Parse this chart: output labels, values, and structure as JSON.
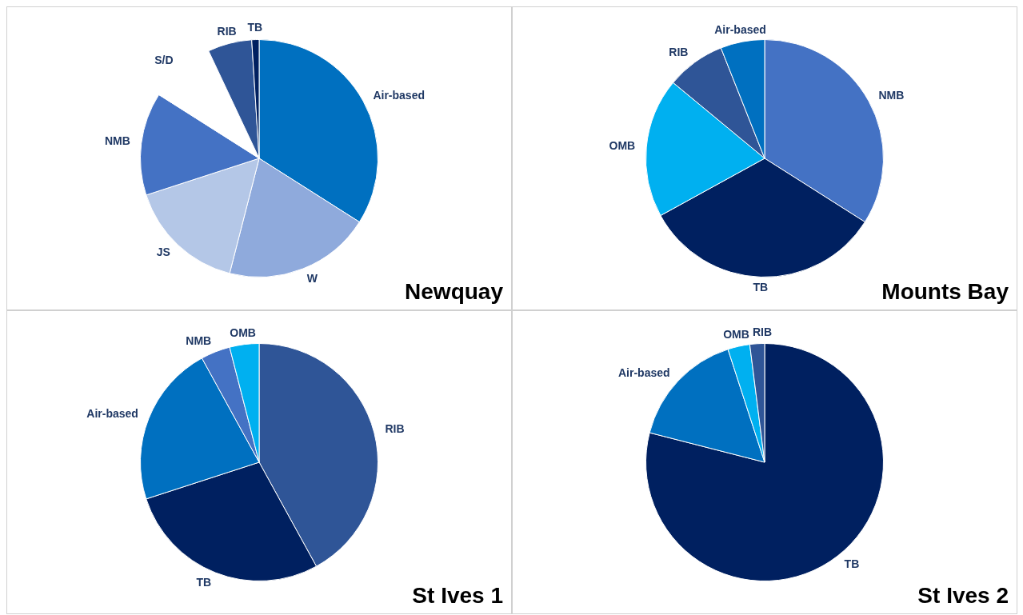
{
  "chart_data": [
    {
      "type": "pie",
      "title": "Newquay",
      "categories": [
        "Air-based",
        "W",
        "JS",
        "NMB",
        "S/D",
        "RIB",
        "TB"
      ],
      "values": [
        34,
        20,
        16,
        14,
        9,
        6,
        1
      ],
      "colors": [
        "#0070c0",
        "#8faadc",
        "#b4c7e7",
        "#4472c4",
        "#ffffff",
        "#2f5597",
        "#002060"
      ]
    },
    {
      "type": "pie",
      "title": "Mounts Bay",
      "categories": [
        "NMB",
        "TB",
        "OMB",
        "RIB",
        "Air-based"
      ],
      "values": [
        34,
        33,
        19,
        8,
        6
      ],
      "colors": [
        "#4472c4",
        "#002060",
        "#00b0f0",
        "#2f5597",
        "#0070c0"
      ]
    },
    {
      "type": "pie",
      "title": "St Ives 1",
      "categories": [
        "RIB",
        "TB",
        "Air-based",
        "NMB",
        "OMB"
      ],
      "values": [
        42,
        28,
        22,
        4,
        4
      ],
      "colors": [
        "#2f5597",
        "#002060",
        "#0070c0",
        "#4472c4",
        "#00b0f0"
      ]
    },
    {
      "type": "pie",
      "title": "St Ives 2",
      "categories": [
        "TB",
        "Air-based",
        "OMB",
        "RIB"
      ],
      "values": [
        79,
        16,
        3,
        2
      ],
      "colors": [
        "#002060",
        "#0070c0",
        "#00b0f0",
        "#2f5597"
      ]
    }
  ]
}
